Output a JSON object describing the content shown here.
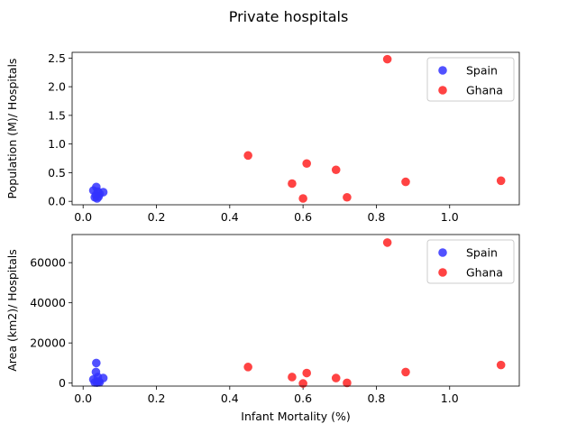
{
  "chart_data": {
    "suptitle": "Private hospitals",
    "legend_position": "top-right",
    "grid": false,
    "series_styles": [
      {
        "name": "Spain",
        "color": "#3333ff"
      },
      {
        "name": "Ghana",
        "color": "#ff2222"
      }
    ],
    "charts": [
      {
        "type": "scatter",
        "ylabel": "Population (M)/ Hospitals",
        "xlabel": "",
        "xlim": [
          -0.03,
          1.19
        ],
        "ylim": [
          -0.06,
          2.6
        ],
        "xticks": [
          0.0,
          0.2,
          0.4,
          0.6,
          0.8,
          1.0
        ],
        "xtick_labels": [
          "0.0",
          "0.2",
          "0.4",
          "0.6",
          "0.8",
          "1.0"
        ],
        "yticks": [
          0.0,
          0.5,
          1.0,
          1.5,
          2.0,
          2.5
        ],
        "ytick_labels": [
          "0.0",
          "0.5",
          "1.0",
          "1.5",
          "2.0",
          "2.5"
        ],
        "series": [
          {
            "name": "Spain",
            "points": [
              [
                0.028,
                0.19
              ],
              [
                0.032,
                0.07
              ],
              [
                0.035,
                0.11
              ],
              [
                0.036,
                0.25
              ],
              [
                0.038,
                0.05
              ],
              [
                0.04,
                0.17
              ],
              [
                0.042,
                0.08
              ],
              [
                0.045,
                0.13
              ],
              [
                0.055,
                0.16
              ]
            ]
          },
          {
            "name": "Ghana",
            "points": [
              [
                0.45,
                0.8
              ],
              [
                0.57,
                0.31
              ],
              [
                0.6,
                0.05
              ],
              [
                0.61,
                0.66
              ],
              [
                0.69,
                0.55
              ],
              [
                0.72,
                0.07
              ],
              [
                0.83,
                2.48
              ],
              [
                0.88,
                0.34
              ],
              [
                1.14,
                0.36
              ]
            ]
          }
        ]
      },
      {
        "type": "scatter",
        "ylabel": "Area (km2)/ Hospitals",
        "xlabel": "Infant Mortality (%)",
        "xlim": [
          -0.03,
          1.19
        ],
        "ylim": [
          -1500,
          74000
        ],
        "xticks": [
          0.0,
          0.2,
          0.4,
          0.6,
          0.8,
          1.0
        ],
        "xtick_labels": [
          "0.0",
          "0.2",
          "0.4",
          "0.6",
          "0.8",
          "1.0"
        ],
        "yticks": [
          0,
          20000,
          40000,
          60000
        ],
        "ytick_labels": [
          "0",
          "20000",
          "40000",
          "60000"
        ],
        "series": [
          {
            "name": "Spain",
            "points": [
              [
                0.028,
                1800
              ],
              [
                0.032,
                300
              ],
              [
                0.035,
                5500
              ],
              [
                0.036,
                10000
              ],
              [
                0.038,
                200
              ],
              [
                0.04,
                3000
              ],
              [
                0.042,
                800
              ],
              [
                0.045,
                400
              ],
              [
                0.055,
                2500
              ]
            ]
          },
          {
            "name": "Ghana",
            "points": [
              [
                0.45,
                8000
              ],
              [
                0.57,
                3000
              ],
              [
                0.6,
                -200
              ],
              [
                0.61,
                5000
              ],
              [
                0.69,
                2500
              ],
              [
                0.72,
                100
              ],
              [
                0.83,
                70000
              ],
              [
                0.88,
                5500
              ],
              [
                1.14,
                9000
              ]
            ]
          }
        ]
      }
    ]
  }
}
